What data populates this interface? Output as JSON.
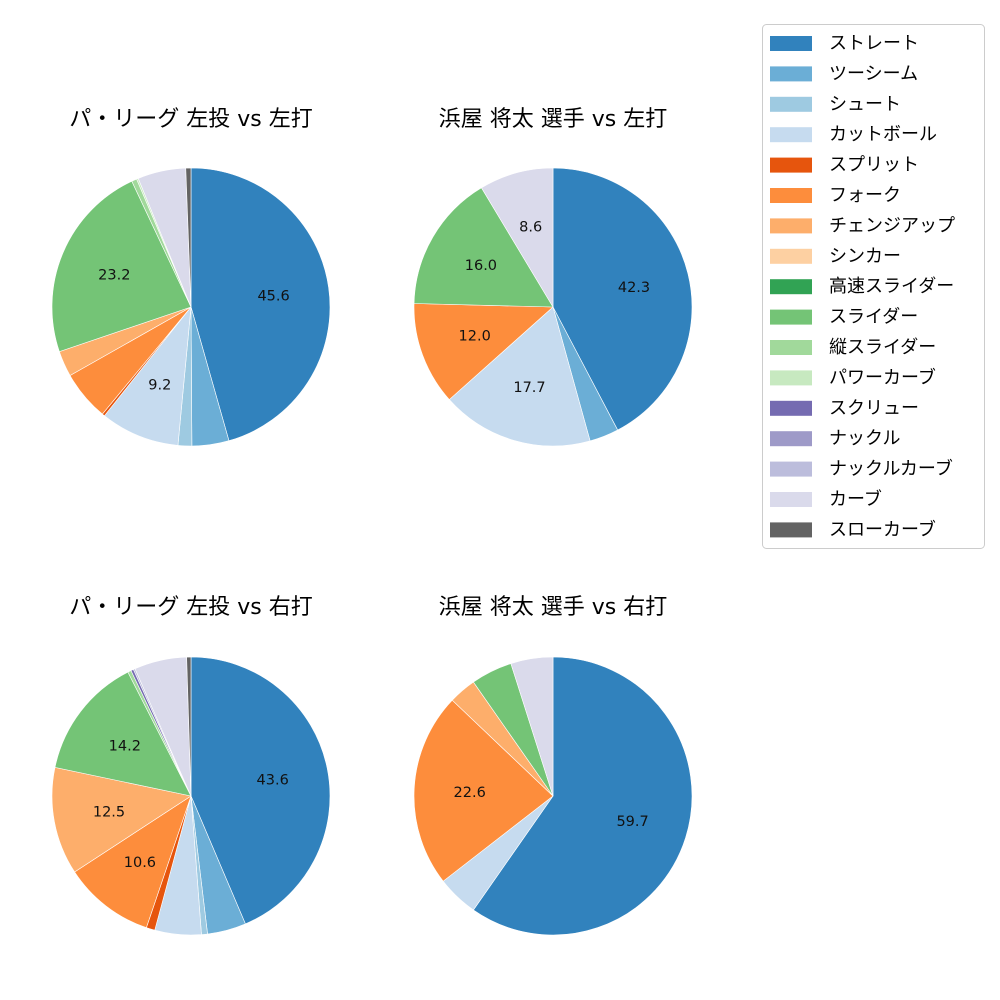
{
  "colors": {
    "ストレート": "#3182bd",
    "ツーシーム": "#6baed6",
    "シュート": "#9ecae1",
    "カットボール": "#c6dbef",
    "スプリット": "#e6550d",
    "フォーク": "#fd8d3c",
    "チェンジアップ": "#fdae6b",
    "シンカー": "#fdd0a2",
    "高速スライダー": "#31a354",
    "スライダー": "#74c476",
    "縦スライダー": "#a1d99b",
    "パワーカーブ": "#c7e9c0",
    "スクリュー": "#756bb1",
    "ナックル": "#9e9ac8",
    "ナックルカーブ": "#bcbddc",
    "カーブ": "#dadaeb",
    "スローカーブ": "#636363"
  },
  "chart_data": [
    {
      "type": "pie",
      "title": "パ・リーグ 左投 vs 左打",
      "slices": [
        {
          "name": "ストレート",
          "value": 45.6,
          "label": "45.6"
        },
        {
          "name": "ツーシーム",
          "value": 4.3,
          "label": ""
        },
        {
          "name": "シュート",
          "value": 1.6,
          "label": ""
        },
        {
          "name": "カットボール",
          "value": 9.2,
          "label": "9.2"
        },
        {
          "name": "スプリット",
          "value": 0.3,
          "label": ""
        },
        {
          "name": "フォーク",
          "value": 5.8,
          "label": ""
        },
        {
          "name": "チェンジアップ",
          "value": 3.0,
          "label": ""
        },
        {
          "name": "スライダー",
          "value": 23.2,
          "label": "23.2"
        },
        {
          "name": "縦スライダー",
          "value": 0.6,
          "label": ""
        },
        {
          "name": "パワーカーブ",
          "value": 0.2,
          "label": ""
        },
        {
          "name": "カーブ",
          "value": 5.6,
          "label": ""
        },
        {
          "name": "スローカーブ",
          "value": 0.6,
          "label": ""
        }
      ]
    },
    {
      "type": "pie",
      "title": "浜屋 将太 選手 vs 左打",
      "slices": [
        {
          "name": "ストレート",
          "value": 42.3,
          "label": "42.3"
        },
        {
          "name": "ツーシーム",
          "value": 3.4,
          "label": ""
        },
        {
          "name": "カットボール",
          "value": 17.7,
          "label": "17.7"
        },
        {
          "name": "フォーク",
          "value": 12.0,
          "label": "12.0"
        },
        {
          "name": "スライダー",
          "value": 16.0,
          "label": "16.0"
        },
        {
          "name": "カーブ",
          "value": 8.6,
          "label": "8.6"
        }
      ]
    },
    {
      "type": "pie",
      "title": "パ・リーグ 左投 vs 右打",
      "slices": [
        {
          "name": "ストレート",
          "value": 43.6,
          "label": "43.6"
        },
        {
          "name": "ツーシーム",
          "value": 4.5,
          "label": ""
        },
        {
          "name": "シュート",
          "value": 0.7,
          "label": ""
        },
        {
          "name": "カットボール",
          "value": 5.4,
          "label": ""
        },
        {
          "name": "スプリット",
          "value": 1.0,
          "label": ""
        },
        {
          "name": "フォーク",
          "value": 10.6,
          "label": "10.6"
        },
        {
          "name": "チェンジアップ",
          "value": 12.5,
          "label": "12.5"
        },
        {
          "name": "スライダー",
          "value": 14.2,
          "label": "14.2"
        },
        {
          "name": "縦スライダー",
          "value": 0.4,
          "label": ""
        },
        {
          "name": "スクリュー",
          "value": 0.3,
          "label": ""
        },
        {
          "name": "ナックルカーブ",
          "value": 0.2,
          "label": ""
        },
        {
          "name": "カーブ",
          "value": 6.1,
          "label": ""
        },
        {
          "name": "スローカーブ",
          "value": 0.5,
          "label": ""
        }
      ]
    },
    {
      "type": "pie",
      "title": "浜屋 将太 選手 vs 右打",
      "slices": [
        {
          "name": "ストレート",
          "value": 59.7,
          "label": "59.7"
        },
        {
          "name": "カットボール",
          "value": 4.8,
          "label": ""
        },
        {
          "name": "フォーク",
          "value": 22.6,
          "label": "22.6"
        },
        {
          "name": "チェンジアップ",
          "value": 3.2,
          "label": ""
        },
        {
          "name": "スライダー",
          "value": 4.8,
          "label": ""
        },
        {
          "name": "カーブ",
          "value": 4.9,
          "label": ""
        }
      ]
    }
  ],
  "legend": {
    "placement": "top-right",
    "items": [
      "ストレート",
      "ツーシーム",
      "シュート",
      "カットボール",
      "スプリット",
      "フォーク",
      "チェンジアップ",
      "シンカー",
      "高速スライダー",
      "スライダー",
      "縦スライダー",
      "パワーカーブ",
      "スクリュー",
      "ナックル",
      "ナックルカーブ",
      "カーブ",
      "スローカーブ"
    ]
  }
}
